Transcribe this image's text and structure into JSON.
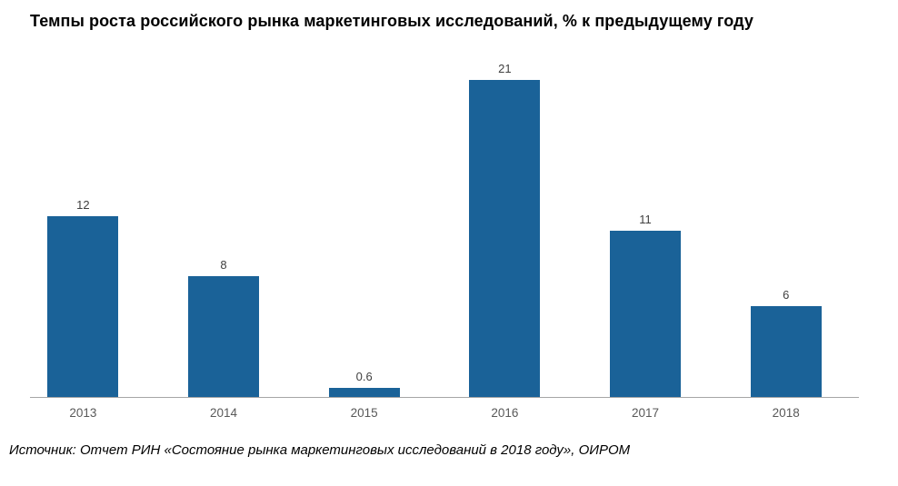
{
  "chart_data": {
    "type": "bar",
    "title": "Темпы роста российского рынка маркетинговых исследований, % к предыдущему году",
    "categories": [
      "2013",
      "2014",
      "2015",
      "2016",
      "2017",
      "2018"
    ],
    "values": [
      12,
      8,
      0.6,
      21,
      11,
      6
    ],
    "xlabel": "",
    "ylabel": "",
    "ylim": [
      0,
      21
    ],
    "grid": false,
    "legend": false,
    "bar_color": "#1a6298",
    "axis_line_color": "#a6a6a6",
    "value_label_color": "#404040",
    "category_label_color": "#595959"
  },
  "source": "Источник: Отчет РИН «Состояние рынка маркетинговых исследований в 2018 году», ОИРОМ"
}
